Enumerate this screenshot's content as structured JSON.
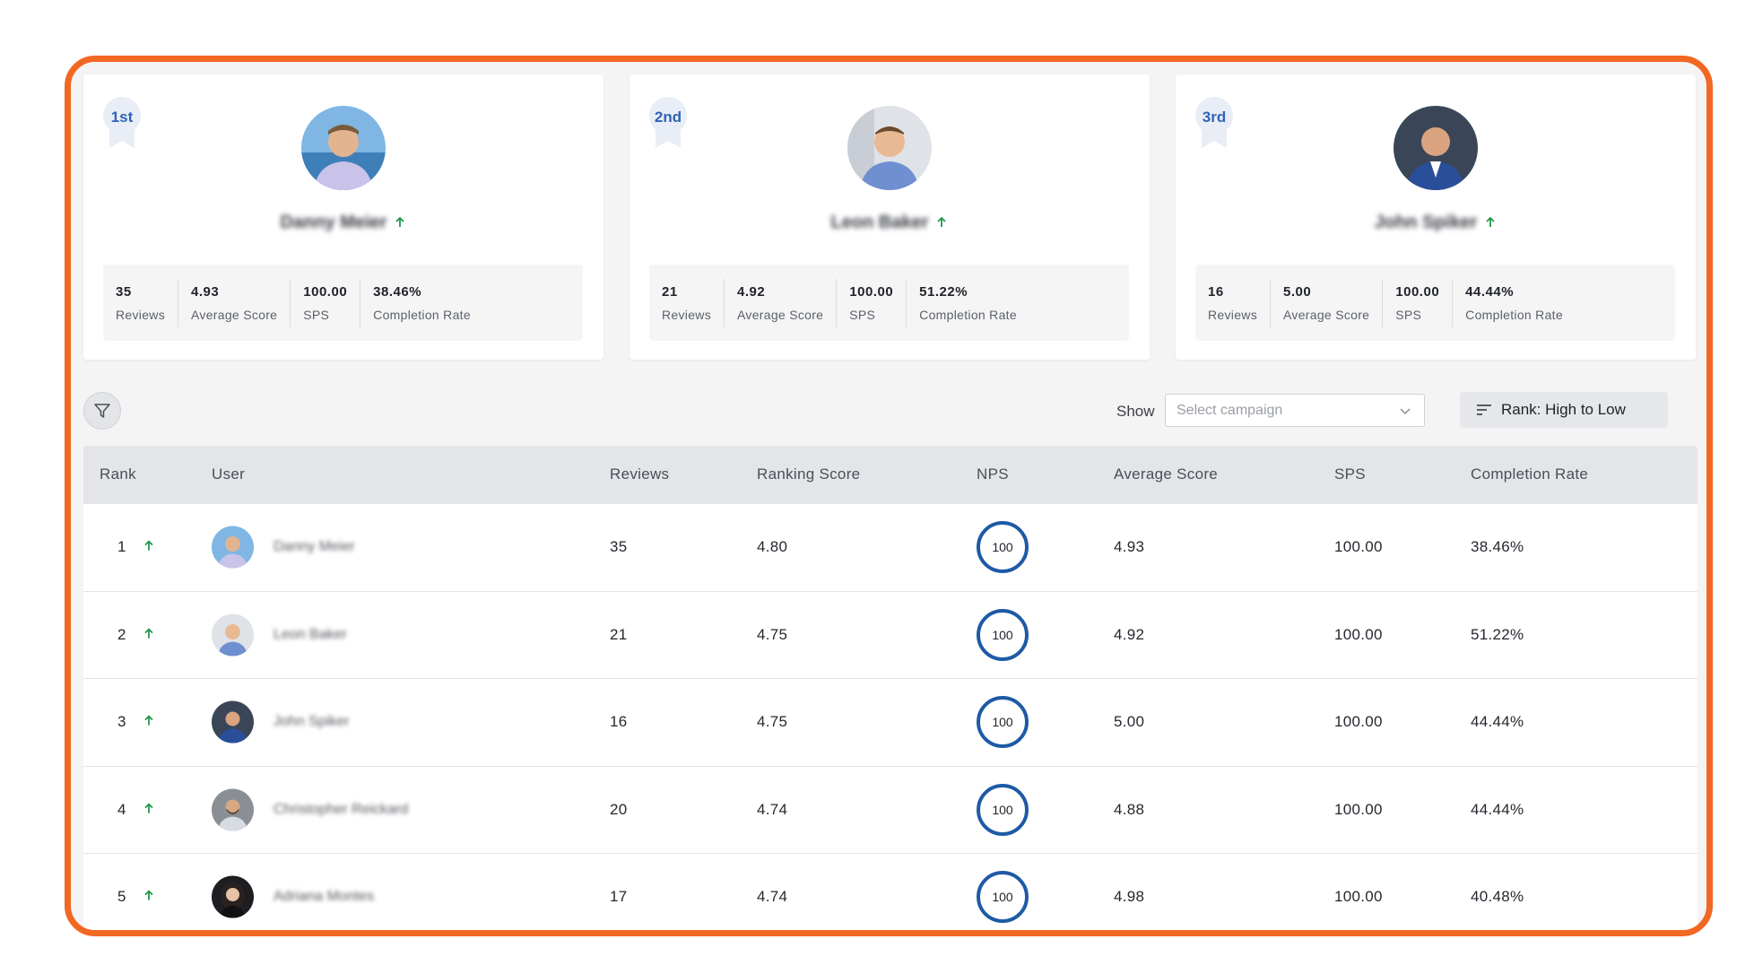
{
  "colors": {
    "accent_border": "#f26722",
    "nps_ring": "#1e5aa6",
    "trend_up": "#1f9a4a",
    "badge_text": "#2f64b6"
  },
  "podium": [
    {
      "place": "1st",
      "name": "Danny Meier",
      "trend_icon": "arrow-up-icon",
      "stats": [
        {
          "value": "35",
          "label": "Reviews"
        },
        {
          "value": "4.93",
          "label": "Average Score"
        },
        {
          "value": "100.00",
          "label": "SPS"
        },
        {
          "value": "38.46%",
          "label": "Completion Rate"
        }
      ]
    },
    {
      "place": "2nd",
      "name": "Leon Baker",
      "trend_icon": "arrow-up-icon",
      "stats": [
        {
          "value": "21",
          "label": "Reviews"
        },
        {
          "value": "4.92",
          "label": "Average Score"
        },
        {
          "value": "100.00",
          "label": "SPS"
        },
        {
          "value": "51.22%",
          "label": "Completion Rate"
        }
      ]
    },
    {
      "place": "3rd",
      "name": "John Spiker",
      "trend_icon": "arrow-up-icon",
      "stats": [
        {
          "value": "16",
          "label": "Reviews"
        },
        {
          "value": "5.00",
          "label": "Average Score"
        },
        {
          "value": "100.00",
          "label": "SPS"
        },
        {
          "value": "44.44%",
          "label": "Completion Rate"
        }
      ]
    }
  ],
  "toolbar": {
    "show_label": "Show",
    "campaign_placeholder": "Select campaign",
    "sort_label": "Rank: High to Low"
  },
  "table": {
    "headers": {
      "rank": "Rank",
      "user": "User",
      "reviews": "Reviews",
      "ranking_score": "Ranking Score",
      "nps": "NPS",
      "average_score": "Average Score",
      "sps": "SPS",
      "completion_rate": "Completion Rate"
    },
    "rows": [
      {
        "rank": "1",
        "name": "Danny Meier",
        "reviews": "35",
        "ranking_score": "4.80",
        "nps": "100",
        "average_score": "4.93",
        "sps": "100.00",
        "completion_rate": "38.46%"
      },
      {
        "rank": "2",
        "name": "Leon Baker",
        "reviews": "21",
        "ranking_score": "4.75",
        "nps": "100",
        "average_score": "4.92",
        "sps": "100.00",
        "completion_rate": "51.22%"
      },
      {
        "rank": "3",
        "name": "John Spiker",
        "reviews": "16",
        "ranking_score": "4.75",
        "nps": "100",
        "average_score": "5.00",
        "sps": "100.00",
        "completion_rate": "44.44%"
      },
      {
        "rank": "4",
        "name": "Christopher Reickard",
        "reviews": "20",
        "ranking_score": "4.74",
        "nps": "100",
        "average_score": "4.88",
        "sps": "100.00",
        "completion_rate": "44.44%"
      },
      {
        "rank": "5",
        "name": "Adriana Montes",
        "reviews": "17",
        "ranking_score": "4.74",
        "nps": "100",
        "average_score": "4.98",
        "sps": "100.00",
        "completion_rate": "40.48%"
      }
    ]
  }
}
